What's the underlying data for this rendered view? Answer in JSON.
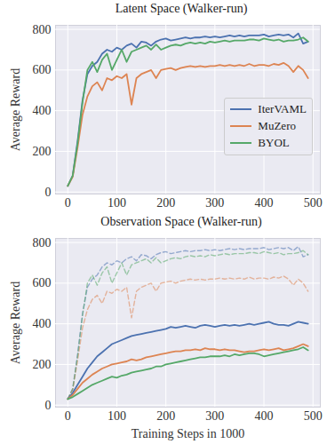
{
  "chart_data": [
    {
      "type": "line",
      "title": "Latent Space (Walker-run)",
      "y_label": "Average Reward",
      "x": [
        0,
        10,
        20,
        30,
        40,
        50,
        60,
        70,
        80,
        90,
        100,
        110,
        120,
        130,
        140,
        150,
        160,
        170,
        180,
        190,
        200,
        210,
        220,
        230,
        240,
        250,
        260,
        270,
        280,
        290,
        300,
        310,
        320,
        330,
        340,
        350,
        360,
        370,
        380,
        390,
        400,
        410,
        420,
        430,
        440,
        450,
        460,
        470,
        480,
        490
      ],
      "xlim": [
        -25,
        515
      ],
      "xticks": [
        0,
        100,
        200,
        300,
        400,
        500
      ],
      "ylim": [
        -10,
        820
      ],
      "yticks": [
        0,
        200,
        400,
        600,
        800
      ],
      "grid": true,
      "legend": "center right",
      "series": [
        {
          "name": "IterVAML",
          "color": "#4c72b0",
          "values": [
            30,
            80,
            250,
            450,
            580,
            620,
            640,
            680,
            700,
            690,
            710,
            700,
            720,
            730,
            710,
            740,
            735,
            720,
            740,
            750,
            755,
            745,
            750,
            755,
            760,
            755,
            760,
            760,
            765,
            760,
            765,
            760,
            765,
            770,
            765,
            770,
            765,
            770,
            770,
            770,
            775,
            765,
            770,
            775,
            770,
            775,
            760,
            780,
            730,
            740
          ]
        },
        {
          "name": "MuZero",
          "color": "#dd8452",
          "values": [
            30,
            75,
            220,
            380,
            470,
            520,
            540,
            500,
            560,
            550,
            570,
            560,
            580,
            430,
            560,
            580,
            590,
            600,
            560,
            600,
            605,
            610,
            600,
            610,
            615,
            620,
            615,
            620,
            615,
            620,
            620,
            625,
            620,
            625,
            620,
            625,
            620,
            630,
            620,
            625,
            625,
            620,
            630,
            625,
            635,
            620,
            590,
            620,
            600,
            560
          ]
        },
        {
          "name": "BYOL",
          "color": "#55a868",
          "values": [
            30,
            80,
            240,
            440,
            600,
            640,
            590,
            650,
            680,
            600,
            650,
            700,
            640,
            690,
            700,
            710,
            720,
            700,
            725,
            700,
            710,
            720,
            725,
            720,
            730,
            735,
            730,
            735,
            730,
            740,
            735,
            740,
            745,
            740,
            745,
            745,
            745,
            750,
            750,
            745,
            755,
            750,
            745,
            750,
            740,
            745,
            745,
            750,
            760,
            740
          ]
        }
      ]
    },
    {
      "type": "line",
      "title": "Observation Space (Walker-run)",
      "y_label": "Average Reward",
      "x_label": "Training Steps in 1000",
      "x": [
        0,
        10,
        20,
        30,
        40,
        50,
        60,
        70,
        80,
        90,
        100,
        110,
        120,
        130,
        140,
        150,
        160,
        170,
        180,
        190,
        200,
        210,
        220,
        230,
        240,
        250,
        260,
        270,
        280,
        290,
        300,
        310,
        320,
        330,
        340,
        350,
        360,
        370,
        380,
        390,
        400,
        410,
        420,
        430,
        440,
        450,
        460,
        470,
        480,
        490
      ],
      "xlim": [
        -25,
        515
      ],
      "xticks": [
        0,
        100,
        200,
        300,
        400,
        500
      ],
      "ylim": [
        -10,
        820
      ],
      "yticks": [
        0,
        200,
        400,
        600,
        800
      ],
      "grid": true,
      "series": [
        {
          "name": "IterVAML",
          "color": "#4c72b0",
          "line_style": "dashed",
          "values": [
            30,
            80,
            250,
            450,
            580,
            620,
            640,
            680,
            700,
            690,
            710,
            700,
            720,
            730,
            710,
            740,
            735,
            720,
            740,
            750,
            755,
            745,
            750,
            755,
            760,
            755,
            760,
            760,
            765,
            760,
            765,
            760,
            765,
            770,
            765,
            770,
            765,
            770,
            770,
            770,
            775,
            765,
            770,
            775,
            770,
            775,
            760,
            780,
            730,
            740
          ]
        },
        {
          "name": "MuZero",
          "color": "#dd8452",
          "line_style": "dashed",
          "values": [
            30,
            75,
            220,
            380,
            470,
            520,
            540,
            500,
            560,
            550,
            570,
            560,
            580,
            430,
            560,
            580,
            590,
            600,
            560,
            600,
            605,
            610,
            600,
            610,
            615,
            620,
            615,
            620,
            615,
            620,
            620,
            625,
            620,
            625,
            620,
            625,
            620,
            630,
            620,
            625,
            625,
            620,
            630,
            625,
            635,
            620,
            590,
            620,
            600,
            560
          ]
        },
        {
          "name": "BYOL",
          "color": "#55a868",
          "line_style": "dashed",
          "values": [
            30,
            80,
            240,
            440,
            600,
            640,
            590,
            650,
            680,
            600,
            650,
            700,
            640,
            690,
            700,
            710,
            720,
            700,
            725,
            700,
            710,
            720,
            725,
            720,
            730,
            735,
            730,
            735,
            730,
            740,
            735,
            740,
            745,
            740,
            745,
            745,
            745,
            750,
            750,
            745,
            755,
            750,
            745,
            750,
            740,
            745,
            745,
            750,
            760,
            740
          ]
        },
        {
          "name": "IterVAML",
          "color": "#4c72b0",
          "line_style": "solid",
          "values": [
            30,
            60,
            100,
            140,
            180,
            210,
            240,
            260,
            280,
            300,
            310,
            320,
            330,
            340,
            345,
            350,
            355,
            360,
            365,
            370,
            375,
            385,
            380,
            385,
            390,
            385,
            380,
            390,
            395,
            390,
            385,
            390,
            395,
            390,
            395,
            390,
            395,
            400,
            395,
            400,
            405,
            410,
            400,
            395,
            395,
            390,
            400,
            410,
            405,
            400
          ]
        },
        {
          "name": "MuZero",
          "color": "#dd8452",
          "line_style": "solid",
          "values": [
            30,
            50,
            80,
            110,
            130,
            150,
            165,
            180,
            190,
            200,
            205,
            210,
            215,
            225,
            220,
            225,
            235,
            240,
            245,
            250,
            255,
            260,
            265,
            265,
            270,
            270,
            275,
            270,
            280,
            275,
            275,
            270,
            275,
            270,
            270,
            265,
            260,
            265,
            265,
            270,
            275,
            270,
            275,
            280,
            270,
            275,
            280,
            290,
            300,
            290
          ]
        },
        {
          "name": "BYOL",
          "color": "#55a868",
          "line_style": "solid",
          "values": [
            30,
            40,
            55,
            70,
            85,
            100,
            110,
            120,
            130,
            140,
            135,
            145,
            150,
            160,
            165,
            170,
            175,
            180,
            190,
            190,
            200,
            205,
            210,
            215,
            220,
            225,
            230,
            235,
            235,
            240,
            240,
            240,
            245,
            240,
            250,
            245,
            250,
            255,
            255,
            250,
            240,
            245,
            250,
            255,
            260,
            265,
            270,
            275,
            285,
            270
          ]
        }
      ]
    }
  ]
}
